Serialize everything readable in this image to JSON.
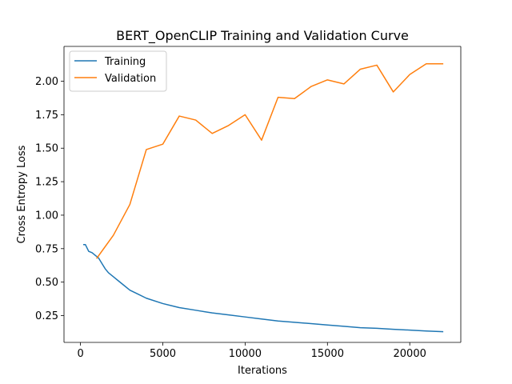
{
  "chart_data": {
    "type": "line",
    "title": "BERT_OpenCLIP Training and Validation Curve",
    "xlabel": "Iterations",
    "ylabel": "Cross Entropy Loss",
    "xlim": [
      -1000,
      23100
    ],
    "ylim": [
      0.05,
      2.26
    ],
    "xticks": [
      0,
      5000,
      10000,
      15000,
      20000
    ],
    "xtick_labels": [
      "0",
      "5000",
      "10000",
      "15000",
      "20000"
    ],
    "yticks": [
      0.25,
      0.5,
      0.75,
      1.0,
      1.25,
      1.5,
      1.75,
      2.0
    ],
    "ytick_labels": [
      "0.25",
      "0.50",
      "0.75",
      "1.00",
      "1.25",
      "1.50",
      "1.75",
      "2.00"
    ],
    "grid": false,
    "legend_position": "upper-left",
    "series": [
      {
        "name": "Training",
        "color": "#1f77b4",
        "x": [
          200,
          300,
          500,
          700,
          900,
          1100,
          1300,
          1500,
          1700,
          2000,
          2300,
          2600,
          3000,
          3500,
          4000,
          5000,
          6000,
          7000,
          8000,
          9000,
          10000,
          11000,
          12000,
          13000,
          14000,
          15000,
          16000,
          17000,
          18000,
          19000,
          20000,
          21000,
          22000
        ],
        "y": [
          0.78,
          0.78,
          0.73,
          0.72,
          0.7,
          0.68,
          0.64,
          0.6,
          0.57,
          0.54,
          0.51,
          0.48,
          0.44,
          0.41,
          0.38,
          0.34,
          0.31,
          0.29,
          0.27,
          0.255,
          0.24,
          0.225,
          0.21,
          0.2,
          0.19,
          0.18,
          0.17,
          0.16,
          0.155,
          0.148,
          0.142,
          0.135,
          0.13
        ]
      },
      {
        "name": "Validation",
        "color": "#ff7f0e",
        "x": [
          1000,
          2000,
          3000,
          4000,
          5000,
          6000,
          7000,
          8000,
          9000,
          10000,
          11000,
          12000,
          13000,
          14000,
          15000,
          16000,
          17000,
          18000,
          19000,
          20000,
          21000,
          22000
        ],
        "y": [
          0.68,
          0.85,
          1.08,
          1.49,
          1.53,
          1.74,
          1.71,
          1.61,
          1.67,
          1.75,
          1.56,
          1.88,
          1.87,
          1.96,
          2.01,
          1.98,
          2.09,
          2.12,
          1.92,
          2.05,
          2.13,
          2.13
        ]
      }
    ]
  }
}
